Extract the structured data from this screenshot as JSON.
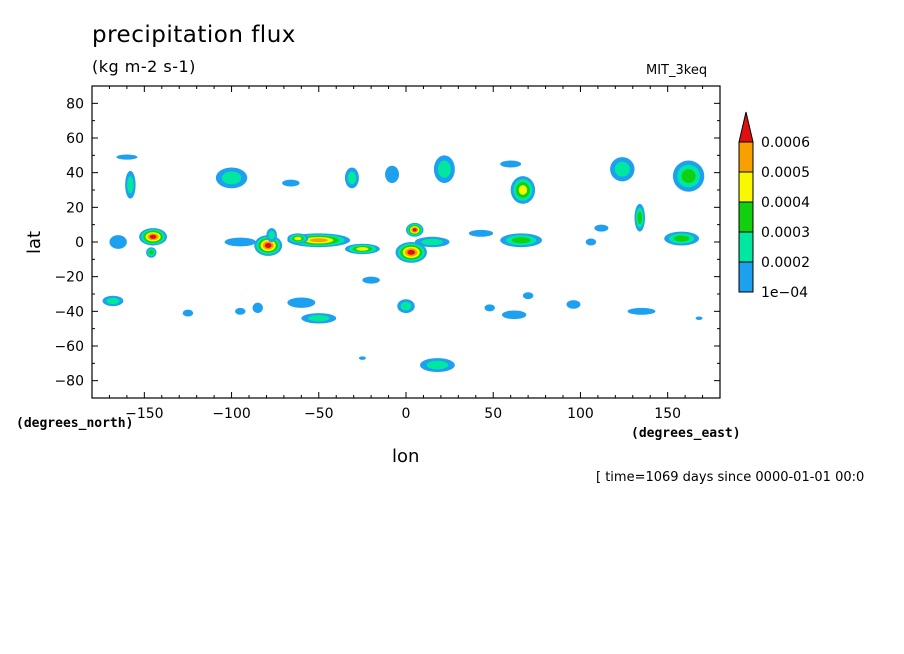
{
  "chart_data": {
    "type": "heatmap",
    "title": "precipitation flux",
    "subtitle": "(kg m-2 s-1)",
    "model_label": "MIT_3keq",
    "xlabel": "lon",
    "ylabel": "lat",
    "x_units": "(degrees_east)",
    "y_units": "(degrees_north)",
    "time_label": "[ time=1069 days since 0000-01-01 00:0",
    "xlim": [
      -180,
      180
    ],
    "ylim": [
      -90,
      90
    ],
    "x_ticks": [
      -150,
      -100,
      -50,
      0,
      50,
      100,
      150
    ],
    "y_ticks": [
      -80,
      -60,
      -40,
      -20,
      0,
      20,
      40,
      60,
      80
    ],
    "colorbar": {
      "levels": [
        0.0001,
        0.0002,
        0.0003,
        0.0004,
        0.0005,
        0.0006
      ],
      "labels": [
        "1e-04",
        "0.0002",
        "0.0003",
        "0.0004",
        "0.0005",
        "0.0006"
      ],
      "colors": [
        "#1ea0f0",
        "#00e8a0",
        "#10d010",
        "#f8f800",
        "#f8a000",
        "#e01010"
      ],
      "extend": "max"
    },
    "blobs": [
      {
        "lon": -145,
        "lat": 3,
        "rx": 8,
        "ry": 5,
        "level": 5
      },
      {
        "lon": -146,
        "lat": -6,
        "rx": 3,
        "ry": 3,
        "level": 2
      },
      {
        "lon": -165,
        "lat": 0,
        "rx": 5,
        "ry": 4,
        "level": 0
      },
      {
        "lon": -158,
        "lat": 33,
        "rx": 3,
        "ry": 8,
        "level": 1
      },
      {
        "lon": -160,
        "lat": 49,
        "rx": 6,
        "ry": 1.5,
        "level": 0
      },
      {
        "lon": -168,
        "lat": -34,
        "rx": 6,
        "ry": 3,
        "level": 1
      },
      {
        "lon": -125,
        "lat": -41,
        "rx": 3,
        "ry": 2,
        "level": 0
      },
      {
        "lon": -100,
        "lat": 37,
        "rx": 9,
        "ry": 6,
        "level": 1
      },
      {
        "lon": -95,
        "lat": 0,
        "rx": 9,
        "ry": 2.5,
        "level": 0
      },
      {
        "lon": -79,
        "lat": -2,
        "rx": 8,
        "ry": 6,
        "level": 5
      },
      {
        "lon": -77,
        "lat": 4,
        "rx": 3,
        "ry": 4,
        "level": 1
      },
      {
        "lon": -66,
        "lat": 34,
        "rx": 5,
        "ry": 2,
        "level": 0
      },
      {
        "lon": -50,
        "lat": 1,
        "rx": 18,
        "ry": 4,
        "level": 4
      },
      {
        "lon": -62,
        "lat": 2,
        "rx": 6,
        "ry": 3,
        "level": 3
      },
      {
        "lon": -25,
        "lat": -4,
        "rx": 10,
        "ry": 3,
        "level": 3
      },
      {
        "lon": -31,
        "lat": 37,
        "rx": 4,
        "ry": 6,
        "level": 1
      },
      {
        "lon": -8,
        "lat": 39,
        "rx": 4,
        "ry": 5,
        "level": 0
      },
      {
        "lon": -50,
        "lat": -44,
        "rx": 10,
        "ry": 3,
        "level": 1
      },
      {
        "lon": -60,
        "lat": -35,
        "rx": 8,
        "ry": 3,
        "level": 0
      },
      {
        "lon": -95,
        "lat": -40,
        "rx": 3,
        "ry": 2,
        "level": 0
      },
      {
        "lon": -85,
        "lat": -38,
        "rx": 3,
        "ry": 3,
        "level": 0
      },
      {
        "lon": -20,
        "lat": -22,
        "rx": 5,
        "ry": 2,
        "level": 0
      },
      {
        "lon": 3,
        "lat": -6,
        "rx": 9,
        "ry": 6,
        "level": 5
      },
      {
        "lon": 5,
        "lat": 7,
        "rx": 5,
        "ry": 4,
        "level": 5
      },
      {
        "lon": 15,
        "lat": 0,
        "rx": 10,
        "ry": 3,
        "level": 1
      },
      {
        "lon": 0,
        "lat": -37,
        "rx": 5,
        "ry": 4,
        "level": 1
      },
      {
        "lon": 22,
        "lat": 42,
        "rx": 6,
        "ry": 8,
        "level": 1
      },
      {
        "lon": 18,
        "lat": -71,
        "rx": 10,
        "ry": 4,
        "level": 1
      },
      {
        "lon": -25,
        "lat": -67,
        "rx": 2,
        "ry": 1,
        "level": 0
      },
      {
        "lon": 67,
        "lat": 30,
        "rx": 7,
        "ry": 8,
        "level": 3
      },
      {
        "lon": 60,
        "lat": 45,
        "rx": 6,
        "ry": 2,
        "level": 0
      },
      {
        "lon": 66,
        "lat": 1,
        "rx": 12,
        "ry": 4,
        "level": 2
      },
      {
        "lon": 43,
        "lat": 5,
        "rx": 7,
        "ry": 2,
        "level": 0
      },
      {
        "lon": 62,
        "lat": -42,
        "rx": 7,
        "ry": 2.5,
        "level": 0
      },
      {
        "lon": 70,
        "lat": -31,
        "rx": 3,
        "ry": 2,
        "level": 0
      },
      {
        "lon": 48,
        "lat": -38,
        "rx": 3,
        "ry": 2,
        "level": 0
      },
      {
        "lon": 96,
        "lat": -36,
        "rx": 4,
        "ry": 2.5,
        "level": 0
      },
      {
        "lon": 112,
        "lat": 8,
        "rx": 4,
        "ry": 2,
        "level": 0
      },
      {
        "lon": 106,
        "lat": 0,
        "rx": 3,
        "ry": 2,
        "level": 0
      },
      {
        "lon": 134,
        "lat": 14,
        "rx": 3,
        "ry": 8,
        "level": 2
      },
      {
        "lon": 124,
        "lat": 42,
        "rx": 7,
        "ry": 7,
        "level": 1
      },
      {
        "lon": 135,
        "lat": -40,
        "rx": 8,
        "ry": 2,
        "level": 0
      },
      {
        "lon": 158,
        "lat": 2,
        "rx": 10,
        "ry": 4,
        "level": 2
      },
      {
        "lon": 162,
        "lat": 38,
        "rx": 9,
        "ry": 9,
        "level": 2
      },
      {
        "lon": 168,
        "lat": -44,
        "rx": 2,
        "ry": 1,
        "level": 0
      }
    ]
  }
}
